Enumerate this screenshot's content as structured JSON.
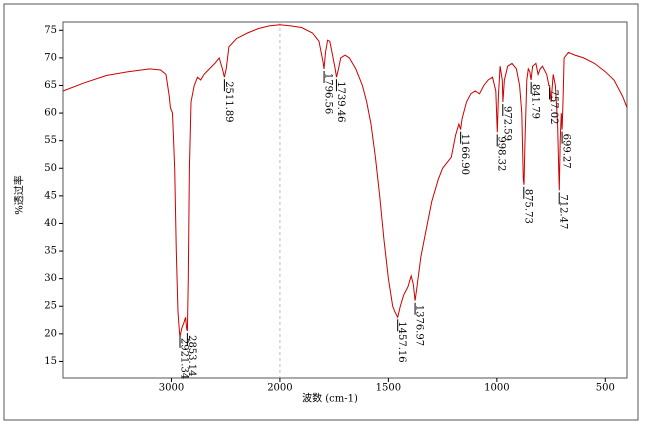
{
  "chart_data": {
    "type": "line",
    "xlabel": "波数 (cm-1)",
    "ylabel": "%透过率",
    "color": "#cc0000",
    "xlim": [
      4000,
      400
    ],
    "xbreak": 2000,
    "xticks": [
      3000,
      2000,
      1500,
      1000,
      500
    ],
    "ylim": [
      12,
      76.5
    ],
    "yticks": [
      15,
      20,
      25,
      30,
      35,
      40,
      45,
      50,
      55,
      60,
      65,
      70,
      75
    ],
    "x": [
      4000,
      3800,
      3600,
      3400,
      3200,
      3100,
      3050,
      3020,
      3010,
      2990,
      2970,
      2955,
      2940,
      2925,
      2921,
      2905,
      2885,
      2870,
      2860,
      2853,
      2845,
      2835,
      2820,
      2790,
      2760,
      2730,
      2700,
      2650,
      2600,
      2560,
      2530,
      2512,
      2495,
      2470,
      2400,
      2300,
      2200,
      2100,
      2000,
      1950,
      1900,
      1850,
      1820,
      1800,
      1797,
      1790,
      1780,
      1770,
      1760,
      1745,
      1739,
      1730,
      1720,
      1700,
      1680,
      1650,
      1620,
      1600,
      1580,
      1560,
      1540,
      1520,
      1500,
      1480,
      1470,
      1457,
      1445,
      1430,
      1410,
      1395,
      1385,
      1377,
      1370,
      1350,
      1320,
      1300,
      1270,
      1250,
      1230,
      1210,
      1190,
      1175,
      1167,
      1160,
      1140,
      1120,
      1100,
      1080,
      1060,
      1040,
      1020,
      1005,
      998,
      993,
      985,
      975,
      972,
      965,
      950,
      930,
      910,
      895,
      885,
      878,
      875,
      870,
      862,
      855,
      848,
      842,
      835,
      820,
      810,
      800,
      790,
      770,
      760,
      757,
      750,
      740,
      730,
      720,
      715,
      712,
      708,
      703,
      699,
      695,
      690,
      670,
      640,
      600,
      550,
      500,
      460,
      420,
      400
    ],
    "values": [
      64,
      65.5,
      66.8,
      67.5,
      68,
      67.8,
      67,
      63,
      61,
      60,
      50,
      35,
      24,
      20,
      19.5,
      21,
      22,
      23,
      21,
      20.5,
      30,
      50,
      62,
      65,
      66.5,
      66,
      67,
      68,
      69,
      70,
      68,
      66.5,
      68,
      72,
      73.5,
      74.5,
      75.3,
      75.8,
      76,
      75.8,
      75.5,
      74.5,
      73,
      69,
      68,
      71,
      73.2,
      73,
      71,
      68,
      66.5,
      68,
      70,
      70.5,
      70,
      68,
      65,
      62,
      58,
      52,
      45,
      37,
      30,
      25,
      24,
      23,
      25,
      27,
      28.5,
      30.5,
      29,
      26,
      28,
      34,
      40,
      44,
      48,
      50,
      51,
      52,
      56,
      58,
      57,
      59,
      62,
      63.5,
      64,
      63.5,
      65,
      66,
      66.5,
      64,
      56.5,
      63,
      68.5,
      66,
      62,
      66,
      68.5,
      69,
      68,
      65,
      60,
      48,
      47,
      55,
      66,
      68,
      67.5,
      66,
      68.5,
      69,
      67,
      68,
      68.5,
      67,
      65,
      65,
      62,
      67,
      65,
      58,
      50,
      46,
      55,
      60,
      57,
      62,
      70,
      71,
      70.5,
      70,
      69,
      67.5,
      66,
      63,
      61
    ],
    "peaks": [
      {
        "x": 2921.34,
        "y": 20,
        "label": "2921.34"
      },
      {
        "x": 2853.14,
        "y": 20.5,
        "label": "2853.14"
      },
      {
        "x": 2511.89,
        "y": 66.5,
        "label": "2511.89"
      },
      {
        "x": 1796.56,
        "y": 68,
        "label": "1796.56"
      },
      {
        "x": 1739.46,
        "y": 66.5,
        "label": "1739.46"
      },
      {
        "x": 1457.16,
        "y": 23,
        "label": "1457.16"
      },
      {
        "x": 1376.97,
        "y": 26,
        "label": "1376.97"
      },
      {
        "x": 1166.9,
        "y": 57,
        "label": "1166.90"
      },
      {
        "x": 998.32,
        "y": 56.5,
        "label": "998.32"
      },
      {
        "x": 972.59,
        "y": 62,
        "label": "972.59"
      },
      {
        "x": 875.73,
        "y": 47,
        "label": "875.73"
      },
      {
        "x": 841.79,
        "y": 66,
        "label": "841.79"
      },
      {
        "x": 757.02,
        "y": 65,
        "label": "757.02"
      },
      {
        "x": 712.47,
        "y": 46,
        "label": "712.47"
      },
      {
        "x": 699.27,
        "y": 57,
        "label": "699.27"
      }
    ]
  }
}
